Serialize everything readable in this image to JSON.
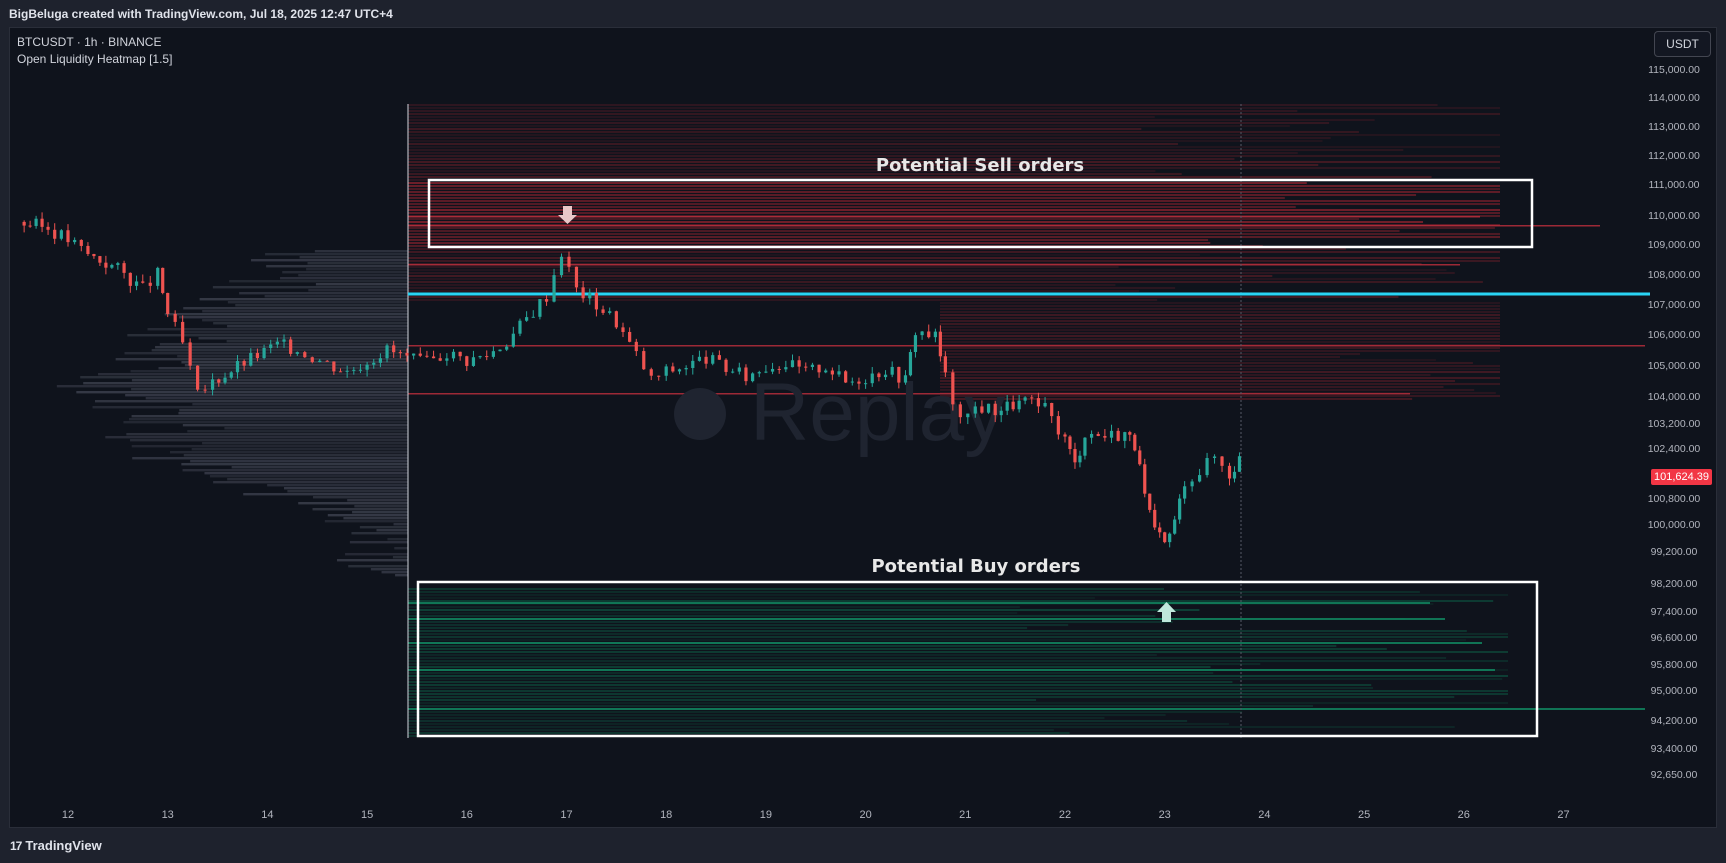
{
  "header": {
    "attribution": "BigBeluga created with TradingView.com, Jul 18, 2025 12:47 UTC+4"
  },
  "legend": {
    "symbol_line": "BTCUSDT · 1h · BINANCE",
    "indicator": "Open Liquidity Heatmap [1.5]"
  },
  "axis": {
    "currency_button": "USDT",
    "current_price": "101,624.39"
  },
  "footer": {
    "brand": "TradingView",
    "brand_mark": "17"
  },
  "watermark": {
    "text": "Replay"
  },
  "annotations": {
    "sell": "Potential Sell orders",
    "buy": "Potential Buy orders"
  },
  "colors": {
    "background": "#0f131c",
    "up": "#26a69a",
    "down": "#ef5350",
    "sell_zone": "#9c2430",
    "buy_zone": "#0c6b4d",
    "key_level": "#29d4f5",
    "price_tag": "#f23645",
    "profile": "#3b3f4c"
  },
  "chart_data": {
    "type": "candlestick",
    "x_tick_labels": [
      "12",
      "13",
      "14",
      "15",
      "16",
      "17",
      "18",
      "19",
      "20",
      "21",
      "22",
      "23",
      "24",
      "25",
      "26",
      "27"
    ],
    "y_tick_labels": [
      "115,000.00",
      "114,000.00",
      "113,000.00",
      "112,000.00",
      "111,000.00",
      "110,000.00",
      "109,000.00",
      "108,000.00",
      "107,000.00",
      "106,000.00",
      "105,000.00",
      "104,000.00",
      "103,200.00",
      "102,400.00",
      "100,800.00",
      "100,000.00",
      "99,200.00",
      "98,200.00",
      "97,400.00",
      "96,600.00",
      "95,800.00",
      "95,000.00",
      "94,200.00",
      "93,400.00",
      "92,650.00"
    ],
    "close_path": [
      {
        "day": 11.5,
        "price": 109900
      },
      {
        "day": 11.8,
        "price": 109700
      },
      {
        "day": 12.0,
        "price": 109300
      },
      {
        "day": 12.2,
        "price": 108800
      },
      {
        "day": 12.5,
        "price": 108300
      },
      {
        "day": 12.75,
        "price": 107600
      },
      {
        "day": 12.9,
        "price": 108100
      },
      {
        "day": 13.0,
        "price": 106800
      },
      {
        "day": 13.15,
        "price": 105700
      },
      {
        "day": 13.3,
        "price": 103800
      },
      {
        "day": 13.45,
        "price": 104300
      },
      {
        "day": 13.7,
        "price": 104900
      },
      {
        "day": 13.9,
        "price": 105300
      },
      {
        "day": 14.1,
        "price": 105700
      },
      {
        "day": 14.3,
        "price": 105500
      },
      {
        "day": 14.6,
        "price": 105000
      },
      {
        "day": 14.8,
        "price": 104700
      },
      {
        "day": 15.0,
        "price": 105100
      },
      {
        "day": 15.2,
        "price": 105500
      },
      {
        "day": 15.4,
        "price": 105200
      },
      {
        "day": 15.6,
        "price": 105000
      },
      {
        "day": 15.8,
        "price": 105400
      },
      {
        "day": 16.0,
        "price": 105100
      },
      {
        "day": 16.2,
        "price": 105300
      },
      {
        "day": 16.4,
        "price": 105800
      },
      {
        "day": 16.6,
        "price": 106600
      },
      {
        "day": 16.8,
        "price": 107400
      },
      {
        "day": 16.95,
        "price": 108900
      },
      {
        "day": 17.1,
        "price": 107600
      },
      {
        "day": 17.3,
        "price": 107100
      },
      {
        "day": 17.5,
        "price": 106500
      },
      {
        "day": 17.7,
        "price": 105300
      },
      {
        "day": 17.85,
        "price": 104400
      },
      {
        "day": 18.0,
        "price": 104700
      },
      {
        "day": 18.2,
        "price": 104900
      },
      {
        "day": 18.4,
        "price": 105200
      },
      {
        "day": 18.6,
        "price": 104800
      },
      {
        "day": 18.8,
        "price": 104500
      },
      {
        "day": 19.0,
        "price": 104900
      },
      {
        "day": 19.2,
        "price": 105000
      },
      {
        "day": 19.4,
        "price": 104700
      },
      {
        "day": 19.6,
        "price": 104900
      },
      {
        "day": 19.8,
        "price": 104300
      },
      {
        "day": 20.0,
        "price": 104500
      },
      {
        "day": 20.2,
        "price": 104800
      },
      {
        "day": 20.4,
        "price": 104400
      },
      {
        "day": 20.5,
        "price": 106200
      },
      {
        "day": 20.7,
        "price": 106000
      },
      {
        "day": 20.8,
        "price": 104500
      },
      {
        "day": 20.95,
        "price": 102800
      },
      {
        "day": 21.1,
        "price": 103400
      },
      {
        "day": 21.3,
        "price": 103300
      },
      {
        "day": 21.6,
        "price": 103600
      },
      {
        "day": 21.8,
        "price": 103300
      },
      {
        "day": 22.0,
        "price": 102300
      },
      {
        "day": 22.1,
        "price": 101400
      },
      {
        "day": 22.2,
        "price": 102500
      },
      {
        "day": 22.4,
        "price": 102400
      },
      {
        "day": 22.6,
        "price": 102500
      },
      {
        "day": 22.7,
        "price": 102100
      },
      {
        "day": 22.8,
        "price": 100300
      },
      {
        "day": 22.9,
        "price": 99000
      },
      {
        "day": 23.0,
        "price": 98500
      },
      {
        "day": 23.1,
        "price": 99400
      },
      {
        "day": 23.2,
        "price": 100900
      },
      {
        "day": 23.35,
        "price": 101200
      },
      {
        "day": 23.5,
        "price": 101700
      },
      {
        "day": 23.65,
        "price": 101100
      },
      {
        "day": 23.75,
        "price": 101624
      }
    ]
  }
}
